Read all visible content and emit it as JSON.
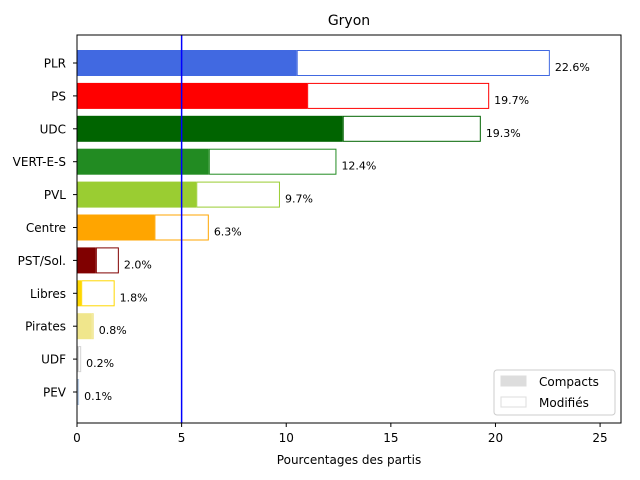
{
  "chart_data": {
    "type": "bar",
    "orientation": "horizontal",
    "stacked": true,
    "title": "Gryon",
    "xlabel": "Pourcentages des partis",
    "ylabel": "",
    "xlim": [
      0,
      26
    ],
    "xticks": [
      "0",
      "5",
      "10",
      "15",
      "20",
      "25"
    ],
    "grid": false,
    "legend_position": "lower right",
    "reference_line": {
      "x": 5,
      "color": "#0000ff"
    },
    "categories": [
      "PLR",
      "PS",
      "UDC",
      "VERT-E-S",
      "PVL",
      "Centre",
      "PST/Sol.",
      "Libres",
      "Pirates",
      "UDF",
      "PEV"
    ],
    "colors": [
      "#4169e1",
      "#ff0000",
      "#006400",
      "#228b22",
      "#9acd32",
      "#ffa500",
      "#800000",
      "#ffd700",
      "#f0e68c",
      "#d3d3d3",
      "#b0c4de"
    ],
    "series": [
      {
        "name": "Compacts",
        "values": [
          10.5,
          11.0,
          12.7,
          6.3,
          5.7,
          3.7,
          0.9,
          0.2,
          0.7,
          0.05,
          0.0
        ],
        "legend_color": "#dddddd"
      },
      {
        "name": "Modifiés",
        "values": [
          12.1,
          8.7,
          6.6,
          6.1,
          4.0,
          2.6,
          1.1,
          1.6,
          0.1,
          0.15,
          0.1
        ],
        "legend_color": "#ffffff"
      }
    ],
    "totals": [
      22.6,
      19.7,
      19.3,
      12.4,
      9.7,
      6.3,
      2.0,
      1.8,
      0.8,
      0.2,
      0.1
    ],
    "data_labels": [
      "22.6%",
      "19.7%",
      "19.3%",
      "12.4%",
      "9.7%",
      "6.3%",
      "2.0%",
      "1.8%",
      "0.8%",
      "0.2%",
      "0.1%"
    ]
  }
}
